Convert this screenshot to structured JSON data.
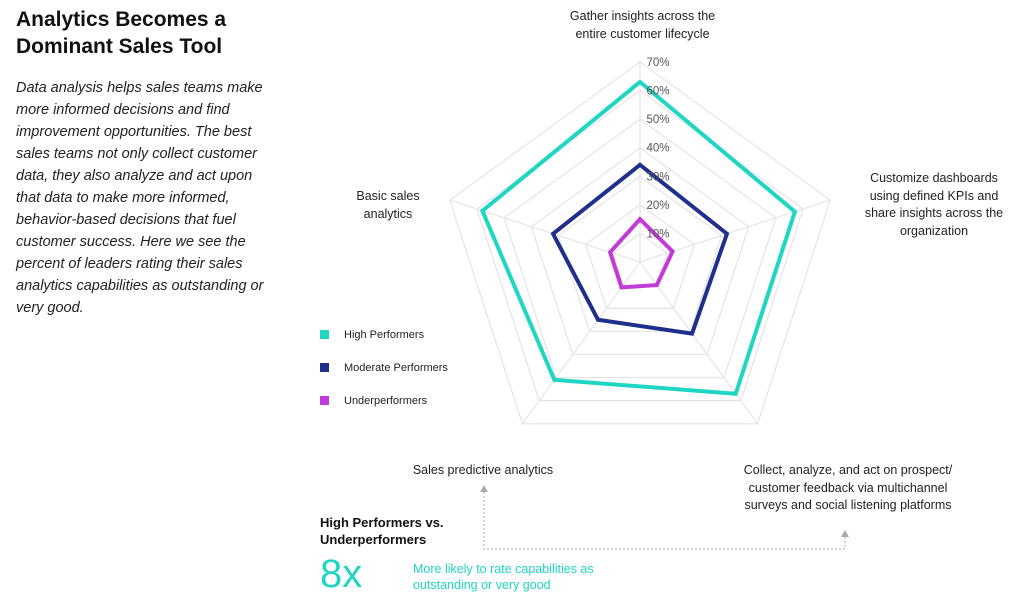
{
  "header": {
    "title": "Analytics Becomes a Dominant Sales Tool",
    "description": "Data analysis helps sales teams make more informed decisions and find improvement opportunities. The best sales teams not only collect customer data, they also analyze and act upon that data to make more informed, behavior-based decisions that fuel customer success. Here we see the percent of leaders rating their sales analytics capabilities as outstanding or very good."
  },
  "callout": {
    "heading": "High Performers vs. Underperformers",
    "multiplier": "8x",
    "text": "More likely to rate capabilities as outstanding or very good"
  },
  "colors": {
    "high": "#1fd6c3",
    "moderate": "#1f2f8c",
    "under": "#c23bd8",
    "grid": "#e4e4e4",
    "pointer": "#aaaaaa"
  },
  "chart_data": {
    "type": "radar",
    "axes": [
      "Gather insights across the entire customer lifecycle",
      "Customize dashboards using defined KPIs and share insights across the organization",
      "Collect, analyze, and act on prospect/ customer feedback via multichannel surveys and social listening platforms",
      "Sales predictive analytics",
      "Basic sales analytics"
    ],
    "rlim": [
      0,
      70
    ],
    "ticks": [
      10,
      20,
      30,
      40,
      50,
      60,
      70
    ],
    "tick_labels": [
      "10%",
      "20%",
      "30%",
      "40%",
      "50%",
      "60%",
      "70%"
    ],
    "series": [
      {
        "name": "High Performers",
        "values": [
          63,
          57,
          57,
          51,
          58
        ]
      },
      {
        "name": "Moderate Performers",
        "values": [
          34,
          32,
          31,
          25,
          32
        ]
      },
      {
        "name": "Underperformers",
        "values": [
          15,
          12,
          10,
          11,
          11
        ]
      }
    ],
    "legend": "left"
  }
}
